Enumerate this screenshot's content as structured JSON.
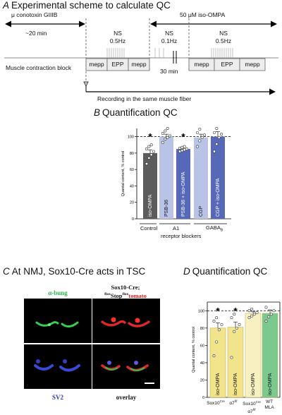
{
  "panel_a": {
    "letter": "A",
    "title": "Experimental scheme to calculate QC",
    "conotoxin": "μ conotoxin GIIIB",
    "duration_20": "~20 min",
    "block_label": "Muscle contraction block",
    "iso_label": "50 μM iso-OMPA",
    "ns1": "NS",
    "ns1_freq": "0.5Hz",
    "ns2": "NS",
    "ns2_freq": "0.1Hz",
    "ns3": "NS",
    "ns3_freq": "0.5Hz",
    "gap": "30 min",
    "seg_mepp1": "mepp",
    "seg_epp1": "EPP",
    "seg_mepp2": "mepp",
    "seg_mepp3": "mepp",
    "seg_epp2": "EPP",
    "seg_mepp4": "mepp",
    "recording": "Recording in the same muscle fiber"
  },
  "panel_b": {
    "letter": "B",
    "title": "Quantification QC",
    "group_control": "Control",
    "group_a1": "A1",
    "group_gaba": "GABA",
    "group_gaba_sub": "B",
    "receptor_blockers": "receptor blockers",
    "ylabel": "Quantal content, % control"
  },
  "panel_c": {
    "letter": "C",
    "title": "At NMJ, Sox10-Cre acts in TSC",
    "abung": "α-bung",
    "sox_title": "Sox10-Cre;",
    "flox_pre": "flox",
    "stop": "Stop",
    "flox_post": "flox",
    "tomato": "tomato",
    "sv2": "SV2",
    "overlay": "overlay"
  },
  "panel_d": {
    "letter": "D",
    "title": "Quantification QC",
    "ylabel": "Quantal content, % control",
    "x1": "Sox10",
    "x1_sup": "Cre",
    "x2": "α7",
    "x2_sup": "f/f",
    "x3": "Sox10",
    "x3_sup": "Cre",
    "x3b": "α7",
    "x3b_sup": "f/f",
    "x4": "WT",
    "x4b": "MLA"
  },
  "colors": {
    "dark_gray": "#5c5c5c",
    "light_blue": "#b8c3e6",
    "mid_blue": "#5868b8",
    "yellow": "#f1e48a",
    "green": "#7cc990",
    "alpha_bung_green": "#2db84a",
    "sv2_blue": "#2d3ab4",
    "tomato_red": "#e02020"
  },
  "chart_data": [
    {
      "type": "bar",
      "title": "Quantification QC",
      "ylabel": "Quantal content, % control",
      "ylim": [
        0,
        110
      ],
      "yticks": [
        0,
        20,
        40,
        60,
        80,
        100
      ],
      "reference_line": 100,
      "categories": [
        "iso-OMPA",
        "PSB-36",
        "PSB-36 + iso-OMPA",
        "CGP",
        "CGP + iso-OMPA"
      ],
      "values": [
        80,
        100,
        85,
        99,
        100
      ],
      "errors": [
        4,
        3,
        2,
        4,
        6
      ],
      "significance": [
        "*",
        "",
        "*",
        "",
        ""
      ],
      "points": [
        [
          67,
          74,
          78,
          82,
          85,
          88,
          90
        ],
        [
          93,
          97,
          99,
          101,
          104,
          107,
          110
        ],
        [
          82,
          83,
          84,
          85,
          86,
          87,
          88
        ],
        [
          88,
          95,
          99,
          102,
          105,
          109
        ],
        [
          82,
          91,
          99,
          103,
          105,
          110
        ]
      ]
    },
    {
      "type": "bar",
      "title": "Quantification QC",
      "ylabel": "Quantal content, % control",
      "ylim": [
        0,
        110
      ],
      "yticks": [
        0,
        20,
        40,
        60,
        80,
        100
      ],
      "reference_line": 100,
      "categories": [
        "iso-OMPA",
        "iso-OMPA",
        "iso-OMPA",
        "iso-OMPA"
      ],
      "values": [
        80,
        81,
        97,
        97
      ],
      "errors": [
        6,
        6,
        2,
        4
      ],
      "significance": [
        "*",
        "*",
        "",
        ""
      ],
      "points": [
        [
          48,
          64,
          78,
          84,
          88,
          92
        ],
        [
          46,
          76,
          80,
          84,
          92,
          96
        ],
        [
          92,
          94,
          96,
          98,
          100,
          102
        ],
        [
          88,
          93,
          96,
          100,
          104
        ]
      ]
    }
  ]
}
